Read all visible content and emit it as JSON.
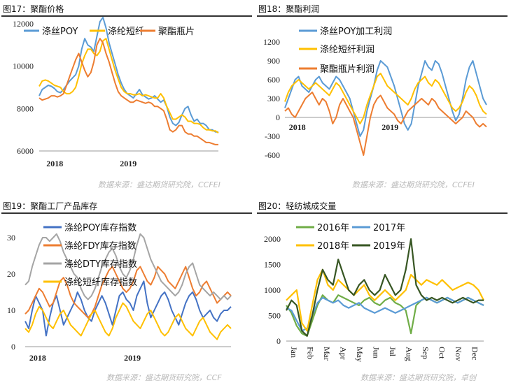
{
  "chart_data": [
    {
      "type": "line",
      "title": "图17：聚酯价格",
      "source": "数据来源：盛达期货研究院，CCFEI",
      "x_ticks": [
        "2018",
        "2019"
      ],
      "y_ticks": [
        "6000",
        "8000",
        "10000",
        "12000"
      ],
      "ylim": [
        6000,
        12000
      ],
      "legend_position": "top",
      "series": [
        {
          "name": "涤丝POY",
          "color": "#5b9bd5",
          "values": [
            8600,
            8900,
            9000,
            9100,
            9050,
            8950,
            8800,
            8750,
            8900,
            9100,
            9300,
            9450,
            9600,
            10000,
            10800,
            11300,
            11000,
            10900,
            10700,
            11400,
            12100,
            12300,
            11800,
            11100,
            10600,
            10100,
            9600,
            9200,
            8900,
            8700,
            8600,
            8500,
            8700,
            8900,
            8650,
            8550,
            8450,
            8500,
            8600,
            8450,
            8300,
            8400,
            8100,
            7600,
            7300,
            7200,
            7350,
            7700,
            8000,
            8100,
            7700,
            7400,
            7500,
            7300,
            7300,
            7200,
            7000,
            7000,
            6900,
            6900
          ]
        },
        {
          "name": "涤纶短纤",
          "color": "#ffc000",
          "values": [
            9050,
            9300,
            9350,
            9300,
            9200,
            9100,
            9050,
            9000,
            8800,
            8700,
            8700,
            8800,
            9000,
            9500,
            10100,
            10500,
            10800,
            10800,
            10600,
            10500,
            10700,
            11200,
            11300,
            10800,
            10300,
            9800,
            9400,
            9000,
            8800,
            8700,
            8700,
            8650,
            8650,
            8700,
            8600,
            8650,
            8600,
            8550,
            8500,
            8500,
            8700,
            8500,
            8100,
            7800,
            7500,
            7500,
            7600,
            7700,
            7600,
            7400,
            7400,
            7300,
            7300,
            7250,
            7100,
            7000,
            7000,
            6950,
            6950,
            6850
          ]
        },
        {
          "name": "聚酯瓶片",
          "color": "#ed7d31",
          "values": [
            8500,
            8400,
            8450,
            8500,
            8600,
            8600,
            8550,
            8600,
            8700,
            9100,
            9500,
            9900,
            10300,
            10600,
            10200,
            9800,
            9500,
            9700,
            10200,
            11000,
            11300,
            11100,
            10600,
            10200,
            9700,
            9200,
            8800,
            8600,
            8500,
            8400,
            8300,
            8300,
            8400,
            8350,
            8300,
            8250,
            8300,
            8250,
            8100,
            8100,
            8000,
            7900,
            7500,
            7000,
            6900,
            7000,
            7200,
            7200,
            6900,
            6800,
            6800,
            6700,
            6700,
            6600,
            6500,
            6400,
            6400,
            6350,
            6300,
            6300
          ]
        }
      ]
    },
    {
      "type": "line",
      "title": "图18：聚酯利润",
      "source": "数据来源：盛达期货研究院，CCFEI",
      "x_ticks": [
        "2018",
        "2019"
      ],
      "y_ticks": [
        "-600",
        "-300",
        "0",
        "300",
        "600",
        "900",
        "1200"
      ],
      "ylim": [
        -600,
        1200
      ],
      "legend_position": "top",
      "series": [
        {
          "name": "涤丝POY加工利润",
          "color": "#5b9bd5",
          "values": [
            150,
            300,
            450,
            600,
            650,
            500,
            450,
            400,
            500,
            600,
            650,
            550,
            500,
            450,
            550,
            650,
            600,
            500,
            400,
            300,
            100,
            -100,
            -300,
            -200,
            100,
            300,
            500,
            750,
            900,
            850,
            800,
            650,
            500,
            300,
            100,
            -100,
            -200,
            -100,
            200,
            500,
            700,
            900,
            800,
            750,
            900,
            850,
            700,
            500,
            300,
            100,
            -50,
            50,
            300,
            600,
            800,
            900,
            700,
            500,
            300,
            200
          ]
        },
        {
          "name": "涤纶短纤利润",
          "color": "#ffc000",
          "values": [
            250,
            400,
            500,
            550,
            600,
            550,
            500,
            450,
            500,
            550,
            500,
            450,
            400,
            350,
            450,
            550,
            500,
            400,
            300,
            200,
            100,
            0,
            -100,
            0,
            200,
            350,
            500,
            650,
            700,
            600,
            500,
            450,
            400,
            350,
            300,
            250,
            200,
            300,
            450,
            550,
            600,
            650,
            550,
            500,
            600,
            550,
            450,
            350,
            250,
            150,
            100,
            150,
            250,
            400,
            500,
            450,
            350,
            200,
            100,
            50
          ]
        },
        {
          "name": "聚酯瓶片利润",
          "color": "#ed7d31",
          "values": [
            100,
            150,
            50,
            0,
            100,
            200,
            300,
            350,
            400,
            300,
            200,
            300,
            250,
            100,
            -100,
            0,
            200,
            300,
            200,
            100,
            0,
            -200,
            -400,
            -600,
            -300,
            0,
            200,
            300,
            350,
            250,
            150,
            100,
            50,
            -50,
            -100,
            0,
            100,
            150,
            200,
            250,
            300,
            250,
            200,
            300,
            250,
            150,
            100,
            50,
            0,
            -50,
            -100,
            -50,
            0,
            100,
            50,
            0,
            -100,
            -150,
            -100,
            -150
          ]
        }
      ]
    },
    {
      "type": "line",
      "title": "图19：聚酯工厂产品库存",
      "source": "数据来源：盛达期货研究院，CCF",
      "x_ticks": [
        "2018",
        "2019"
      ],
      "y_ticks": [
        "0",
        "10",
        "20",
        "30"
      ],
      "ylim": [
        0,
        30
      ],
      "legend_position": "top",
      "series": [
        {
          "name": "涤纶POY库存指数",
          "color": "#4472c4",
          "values": [
            7,
            5,
            10,
            14,
            12,
            10,
            3,
            8,
            12,
            14,
            10,
            6,
            8,
            10,
            12,
            15,
            13,
            10,
            8,
            7,
            10,
            12,
            14,
            12,
            9,
            6,
            10,
            14,
            15,
            13,
            12,
            10,
            14,
            16,
            18,
            12,
            8,
            10,
            12,
            14,
            15,
            13,
            10,
            8,
            6,
            9,
            12,
            14,
            15,
            13,
            10,
            8,
            9,
            10,
            8,
            7,
            9,
            10,
            10,
            11
          ]
        },
        {
          "name": "涤纶FDY库存指数",
          "color": "#ed7d31",
          "values": [
            9,
            10,
            12,
            14,
            16,
            15,
            13,
            11,
            12,
            15,
            18,
            19,
            17,
            14,
            12,
            11,
            10,
            9,
            8,
            9,
            11,
            14,
            17,
            19,
            21,
            22,
            20,
            18,
            16,
            15,
            16,
            18,
            21,
            22,
            20,
            18,
            17,
            19,
            22,
            21,
            20,
            18,
            17,
            16,
            18,
            20,
            22,
            19,
            16,
            14,
            15,
            17,
            18,
            16,
            14,
            12,
            13,
            14,
            15,
            14
          ]
        },
        {
          "name": "涤纶DTY库存指数",
          "color": "#a5a5a5",
          "values": [
            17,
            18,
            22,
            25,
            28,
            30,
            30,
            29,
            30,
            31,
            29,
            26,
            24,
            22,
            20,
            19,
            16,
            14,
            13,
            14,
            16,
            19,
            22,
            24,
            26,
            27,
            25,
            22,
            20,
            19,
            21,
            24,
            28,
            31,
            30,
            27,
            24,
            22,
            20,
            18,
            17,
            16,
            15,
            14,
            15,
            17,
            20,
            22,
            23,
            20,
            17,
            16,
            15,
            14,
            15,
            14,
            13,
            14,
            13,
            14
          ]
        },
        {
          "name": "涤纶短纤库存指数",
          "color": "#ffc000",
          "values": [
            5,
            4,
            6,
            9,
            11,
            10,
            8,
            6,
            5,
            7,
            9,
            10,
            8,
            6,
            5,
            4,
            3,
            5,
            7,
            9,
            10,
            8,
            6,
            4,
            3,
            5,
            8,
            10,
            12,
            11,
            9,
            7,
            6,
            5,
            7,
            9,
            10,
            8,
            6,
            4,
            3,
            4,
            6,
            8,
            9,
            7,
            5,
            4,
            3,
            5,
            7,
            8,
            6,
            4,
            3,
            2,
            4,
            5,
            6,
            5
          ]
        }
      ]
    },
    {
      "type": "line",
      "title": "图20：轻纺城成交量",
      "source": "数据来源：盛达期货研究院，卓创",
      "x_ticks": [
        "Jan",
        "Feb",
        "Mar",
        "Apr",
        "May",
        "Jun",
        "Jul",
        "Aug",
        "Sep",
        "Oct",
        "Nov",
        "Dec"
      ],
      "y_ticks": [
        "0",
        "500",
        "1000",
        "1500",
        "2000"
      ],
      "ylim": [
        0,
        2000
      ],
      "legend_position": "top",
      "series": [
        {
          "name": "2016年",
          "color": "#70ad47",
          "values": [
            700,
            550,
            300,
            150,
            100,
            400,
            700,
            900,
            800,
            750,
            900,
            850,
            800,
            750,
            700,
            800,
            850,
            750,
            700,
            800,
            850,
            750,
            700,
            600,
            150,
            700,
            800,
            850,
            800,
            750,
            800,
            850,
            800,
            750,
            800,
            850,
            800,
            750,
            700
          ]
        },
        {
          "name": "2017年",
          "color": "#5b9bd5",
          "values": [
            650,
            600,
            400,
            200,
            250,
            500,
            750,
            850,
            800,
            750,
            800,
            700,
            650,
            700,
            750,
            650,
            600,
            550,
            600,
            650,
            600,
            550,
            600,
            650,
            700,
            750,
            800,
            850,
            800,
            750,
            800,
            850,
            800,
            750,
            800,
            850,
            800,
            750,
            700
          ]
        },
        {
          "name": "2018年",
          "color": "#ffc000",
          "values": [
            800,
            900,
            1000,
            350,
            200,
            700,
            1200,
            1400,
            1100,
            1000,
            1200,
            1100,
            1000,
            900,
            1000,
            1100,
            900,
            800,
            900,
            1000,
            900,
            800,
            900,
            1000,
            1300,
            1200,
            1100,
            1200,
            1150,
            1100,
            1200,
            1100,
            1000,
            1050,
            1100,
            1150,
            1100,
            1000,
            800
          ]
        },
        {
          "name": "2019年",
          "color": "#375623",
          "values": [
            600,
            800,
            700,
            200,
            100,
            500,
            1000,
            1400,
            1200,
            1100,
            1600,
            1300,
            1000,
            900,
            1100,
            1200,
            1000,
            900,
            1000,
            1300,
            1100,
            900,
            1000,
            1400,
            2000,
            1100,
            900,
            800,
            850,
            800,
            850,
            800,
            750,
            800,
            850,
            800,
            750,
            800,
            800
          ]
        }
      ]
    }
  ]
}
